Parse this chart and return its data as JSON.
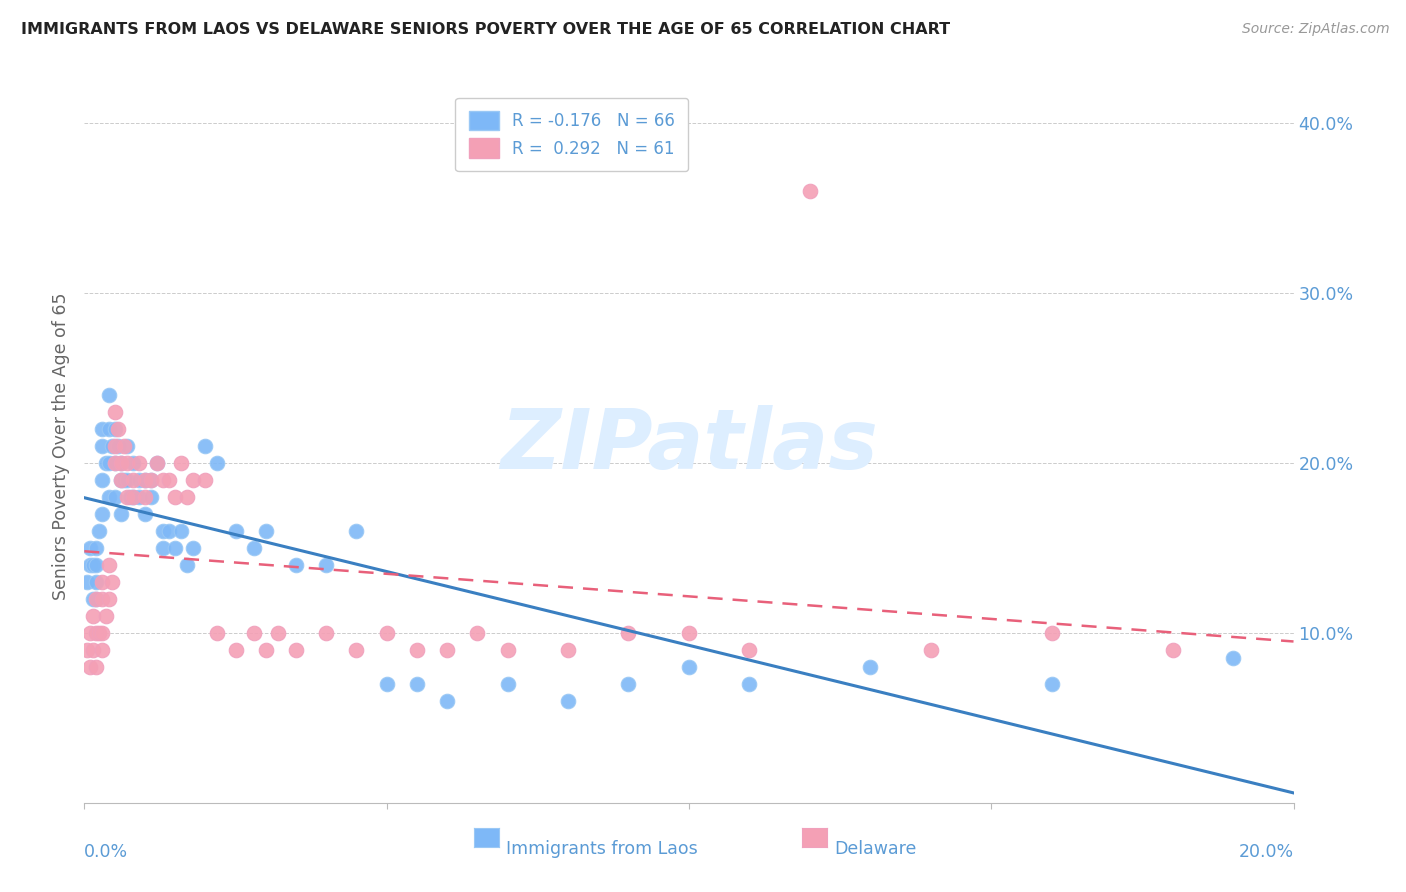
{
  "title": "IMMIGRANTS FROM LAOS VS DELAWARE SENIORS POVERTY OVER THE AGE OF 65 CORRELATION CHART",
  "source": "Source: ZipAtlas.com",
  "ylabel": "Seniors Poverty Over the Age of 65",
  "xlabel_laos": "Immigrants from Laos",
  "xlabel_delaware": "Delaware",
  "xlim": [
    0.0,
    0.2
  ],
  "ylim": [
    0.0,
    0.42
  ],
  "yticks": [
    0.1,
    0.2,
    0.3,
    0.4
  ],
  "xticks": [
    0.0,
    0.05,
    0.1,
    0.15,
    0.2
  ],
  "color_laos": "#7EB8F7",
  "color_delaware": "#F4A0B5",
  "legend_R_laos": "-0.176",
  "legend_N_laos": "66",
  "legend_R_delaware": "0.292",
  "legend_N_delaware": "61",
  "laos_x": [
    0.0005,
    0.001,
    0.001,
    0.0015,
    0.0015,
    0.002,
    0.002,
    0.002,
    0.002,
    0.0025,
    0.003,
    0.003,
    0.003,
    0.003,
    0.0035,
    0.004,
    0.004,
    0.004,
    0.004,
    0.0045,
    0.005,
    0.005,
    0.005,
    0.0055,
    0.006,
    0.006,
    0.006,
    0.0065,
    0.007,
    0.007,
    0.0075,
    0.008,
    0.008,
    0.009,
    0.009,
    0.01,
    0.01,
    0.011,
    0.011,
    0.012,
    0.013,
    0.013,
    0.014,
    0.015,
    0.016,
    0.017,
    0.018,
    0.02,
    0.022,
    0.025,
    0.028,
    0.03,
    0.035,
    0.04,
    0.045,
    0.05,
    0.055,
    0.06,
    0.07,
    0.08,
    0.09,
    0.1,
    0.11,
    0.13,
    0.16,
    0.19
  ],
  "laos_y": [
    0.13,
    0.15,
    0.14,
    0.14,
    0.12,
    0.15,
    0.14,
    0.13,
    0.12,
    0.16,
    0.22,
    0.21,
    0.19,
    0.17,
    0.2,
    0.24,
    0.22,
    0.2,
    0.18,
    0.21,
    0.22,
    0.2,
    0.18,
    0.21,
    0.2,
    0.19,
    0.17,
    0.19,
    0.21,
    0.19,
    0.18,
    0.2,
    0.18,
    0.19,
    0.18,
    0.19,
    0.17,
    0.19,
    0.18,
    0.2,
    0.16,
    0.15,
    0.16,
    0.15,
    0.16,
    0.14,
    0.15,
    0.21,
    0.2,
    0.16,
    0.15,
    0.16,
    0.14,
    0.14,
    0.16,
    0.07,
    0.07,
    0.06,
    0.07,
    0.06,
    0.07,
    0.08,
    0.07,
    0.08,
    0.07,
    0.085
  ],
  "delaware_x": [
    0.0005,
    0.001,
    0.001,
    0.0015,
    0.0015,
    0.002,
    0.002,
    0.002,
    0.0025,
    0.003,
    0.003,
    0.003,
    0.003,
    0.0035,
    0.004,
    0.004,
    0.0045,
    0.005,
    0.005,
    0.005,
    0.0055,
    0.006,
    0.006,
    0.0065,
    0.007,
    0.007,
    0.008,
    0.008,
    0.009,
    0.01,
    0.01,
    0.011,
    0.012,
    0.013,
    0.014,
    0.015,
    0.016,
    0.017,
    0.018,
    0.02,
    0.022,
    0.025,
    0.028,
    0.03,
    0.032,
    0.035,
    0.04,
    0.045,
    0.05,
    0.055,
    0.06,
    0.065,
    0.07,
    0.08,
    0.09,
    0.1,
    0.11,
    0.12,
    0.14,
    0.16,
    0.18
  ],
  "delaware_y": [
    0.09,
    0.1,
    0.08,
    0.11,
    0.09,
    0.12,
    0.1,
    0.08,
    0.1,
    0.13,
    0.12,
    0.1,
    0.09,
    0.11,
    0.14,
    0.12,
    0.13,
    0.23,
    0.21,
    0.2,
    0.22,
    0.2,
    0.19,
    0.21,
    0.2,
    0.18,
    0.19,
    0.18,
    0.2,
    0.19,
    0.18,
    0.19,
    0.2,
    0.19,
    0.19,
    0.18,
    0.2,
    0.18,
    0.19,
    0.19,
    0.1,
    0.09,
    0.1,
    0.09,
    0.1,
    0.09,
    0.1,
    0.09,
    0.1,
    0.09,
    0.09,
    0.1,
    0.09,
    0.09,
    0.1,
    0.1,
    0.09,
    0.36,
    0.09,
    0.1,
    0.09
  ],
  "background_color": "#ffffff",
  "grid_color": "#cccccc",
  "tick_color": "#5B9BD5",
  "ylabel_color": "#666666",
  "title_color": "#222222",
  "watermark": "ZIPatlas",
  "watermark_color": "#ddeeff",
  "watermark_fontsize": 60
}
